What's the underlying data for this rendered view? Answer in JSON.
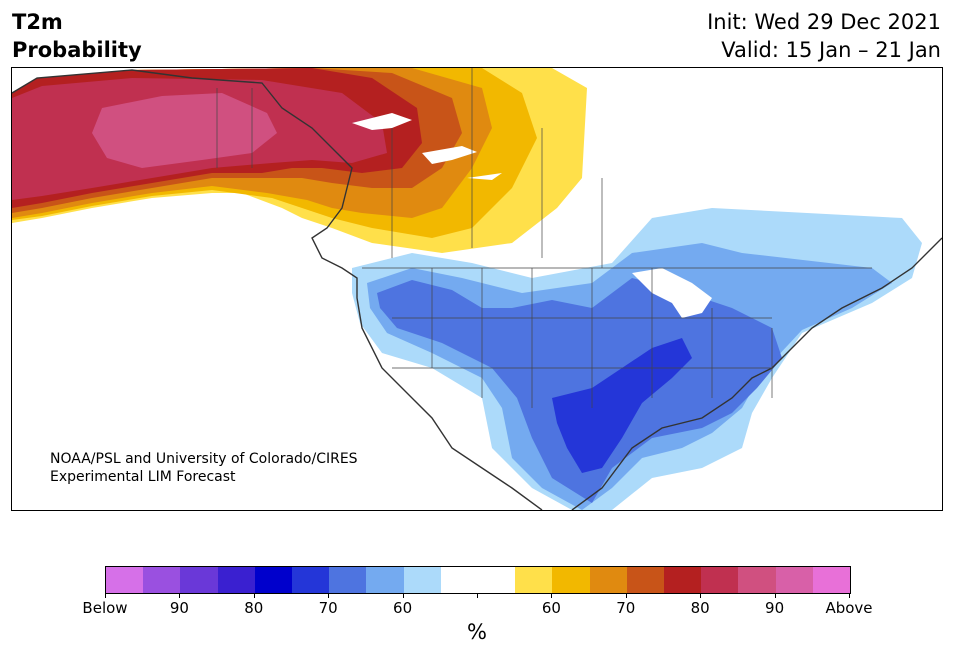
{
  "header": {
    "title_line1": "T2m",
    "title_line2": "Probability",
    "init_line": "Init: Wed 29 Dec 2021",
    "valid_line": "Valid: 15 Jan – 21 Jan"
  },
  "map": {
    "credit_line1": "NOAA/PSL and University of Colorado/CIRES",
    "credit_line2": "Experimental LIM Forecast"
  },
  "colorbar": {
    "colors": [
      "#d670e8",
      "#9a50e0",
      "#6a38d8",
      "#3a20d0",
      "#0000cc",
      "#2436d8",
      "#4e74e0",
      "#74aaf0",
      "#acdafa",
      "#ffffff",
      "#ffffff",
      "#ffe04a",
      "#f2b800",
      "#e08a10",
      "#c85418",
      "#b42020",
      "#c03050",
      "#d05080",
      "#d860a8",
      "#e870d8"
    ],
    "labels": [
      "Below",
      "90",
      "80",
      "70",
      "60",
      "60",
      "70",
      "80",
      "90",
      "Above"
    ],
    "unit": "%"
  }
}
